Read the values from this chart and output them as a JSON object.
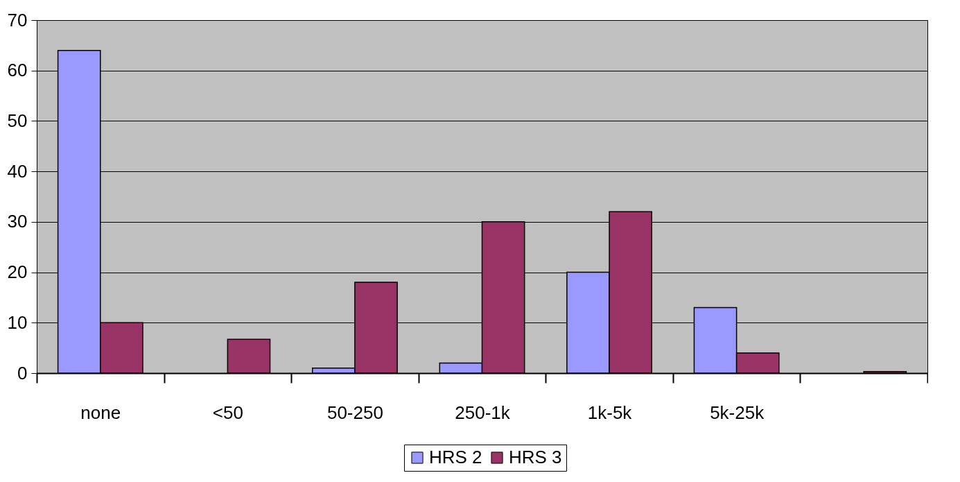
{
  "chart_data": {
    "type": "bar",
    "categories": [
      "none",
      "<50",
      "50-250",
      "250-1k",
      "1k-5k",
      "5k-25k",
      null
    ],
    "series": [
      {
        "name": "HRS 2",
        "color": "#9999ff",
        "values": [
          64,
          null,
          1,
          2,
          20,
          13,
          null
        ]
      },
      {
        "name": "HRS 3",
        "color": "#993366",
        "values": [
          10,
          6.7,
          18,
          30,
          32,
          4,
          0.3
        ]
      }
    ],
    "ylim": [
      0,
      70
    ],
    "yticks": [
      0,
      10,
      20,
      30,
      40,
      50,
      60,
      70
    ],
    "grid": "y",
    "legend": "bottom"
  }
}
